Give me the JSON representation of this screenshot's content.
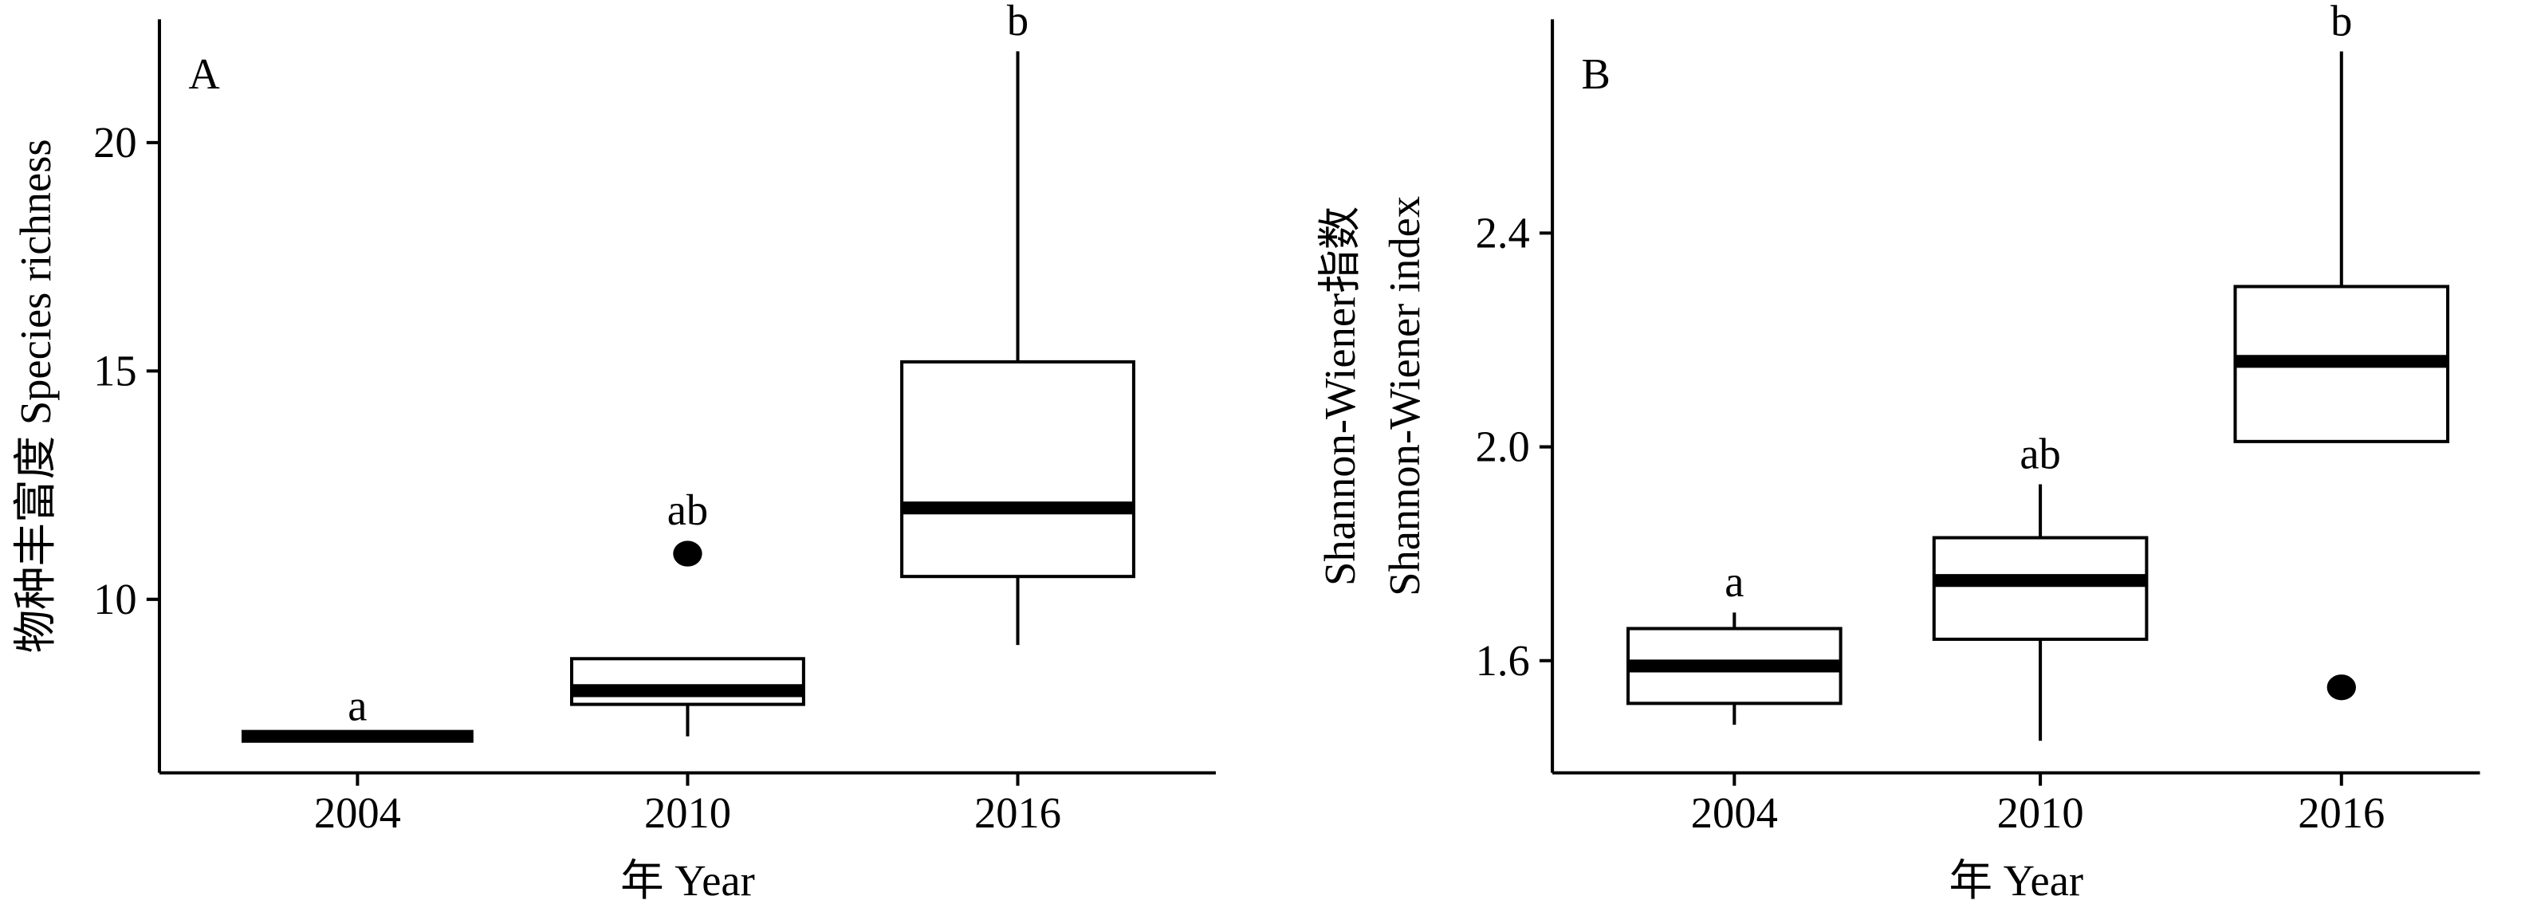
{
  "chart_data": [
    {
      "type": "box",
      "panel": "A",
      "y_label": [
        "物种丰富度 Species richness"
      ],
      "x_label": "年 Year",
      "categories": [
        "2004",
        "2010",
        "2016"
      ],
      "boxes": [
        {
          "whisker_low": 7,
          "q1": 7,
          "median": 7,
          "q3": 7,
          "whisker_high": 7,
          "outliers": [],
          "letter": "a"
        },
        {
          "whisker_low": 7,
          "q1": 7.7,
          "median": 8,
          "q3": 8.7,
          "whisker_high": 8.7,
          "outliers": [
            11
          ],
          "letter": "ab"
        },
        {
          "whisker_low": 9,
          "q1": 10.5,
          "median": 12,
          "q3": 15.2,
          "whisker_high": 22,
          "outliers": [],
          "letter": "b"
        }
      ],
      "ylim": [
        6.2,
        22.7
      ],
      "yticks": [
        10,
        15,
        20
      ],
      "color": "#000000"
    },
    {
      "type": "box",
      "panel": "B",
      "y_label": [
        "Shannon-Wiener指数",
        "Shannon-Wiener index"
      ],
      "x_label": "年 Year",
      "categories": [
        "2004",
        "2010",
        "2016"
      ],
      "boxes": [
        {
          "whisker_low": 1.48,
          "q1": 1.52,
          "median": 1.59,
          "q3": 1.66,
          "whisker_high": 1.69,
          "outliers": [],
          "letter": "a"
        },
        {
          "whisker_low": 1.45,
          "q1": 1.64,
          "median": 1.75,
          "q3": 1.83,
          "whisker_high": 1.93,
          "outliers": [],
          "letter": "ab"
        },
        {
          "whisker_low": 2.01,
          "q1": 2.01,
          "median": 2.16,
          "q3": 2.3,
          "whisker_high": 2.74,
          "outliers": [
            1.55
          ],
          "letter": "b"
        }
      ],
      "ylim": [
        1.39,
        2.8
      ],
      "yticks": [
        {
          "value": 1.6,
          "label": "1.6"
        },
        {
          "value": 2.0,
          "label": "2.0"
        },
        {
          "value": 2.4,
          "label": "2.4"
        }
      ],
      "color": "#000000"
    }
  ]
}
